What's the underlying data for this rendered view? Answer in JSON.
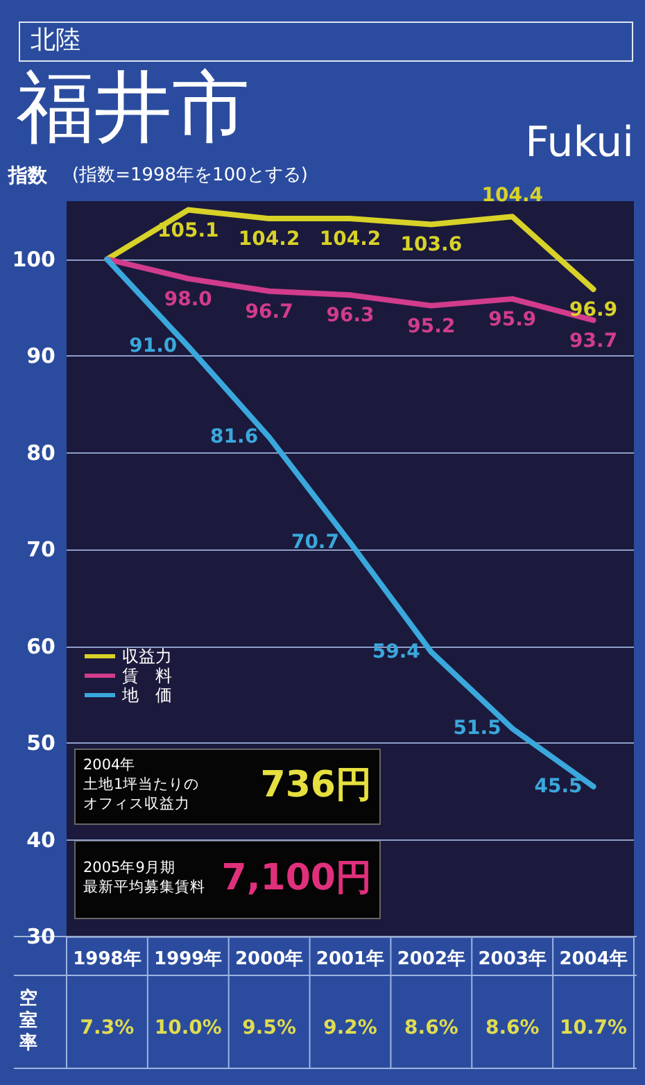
{
  "chart_data": {
    "type": "line",
    "subtitle": "北陸",
    "title": "福井市",
    "ylabel": "指数",
    "categories": [
      "1998年",
      "1999年",
      "2000年",
      "2001年",
      "2002年",
      "2003年",
      "2004年"
    ],
    "series": [
      {
        "name": "収益力",
        "color": "#d8d228",
        "values": [
          100,
          105.1,
          104.2,
          104.2,
          103.6,
          104.4,
          96.9
        ],
        "value_labels": [
          null,
          "105.1",
          "104.2",
          "104.2",
          "103.6",
          "104.4",
          "96.9"
        ]
      },
      {
        "name": "賃　料",
        "color": "#d23c8c",
        "values": [
          100,
          98.0,
          96.7,
          96.3,
          95.2,
          95.9,
          93.7
        ],
        "value_labels": [
          null,
          "98.0",
          "96.7",
          "96.3",
          "95.2",
          "95.9",
          "93.7"
        ]
      },
      {
        "name": "地　価",
        "color": "#3aa8dc",
        "values": [
          100,
          91.0,
          81.6,
          70.7,
          59.4,
          51.5,
          45.5
        ],
        "value_labels": [
          null,
          "91.0",
          "81.6",
          "70.7",
          "59.4",
          "51.5",
          "45.5"
        ]
      }
    ],
    "ylim": [
      30,
      106
    ],
    "yticks": [
      30,
      40,
      50,
      60,
      70,
      80,
      90,
      100
    ],
    "grid": "y",
    "legend": "left",
    "marker": "none",
    "line_style": "solid",
    "annotations": [
      "Fukui",
      "(指数=1998年を100とする)",
      "2004年",
      "土地1坪当たりの",
      "オフィス収益力",
      "736円",
      "2005年9月期",
      "最新平均募集賃料",
      "7,100円",
      "空室率",
      "7.3%",
      "10.0%",
      "9.5%",
      "9.2%",
      "8.6%",
      "8.6%",
      "10.7%"
    ]
  }
}
